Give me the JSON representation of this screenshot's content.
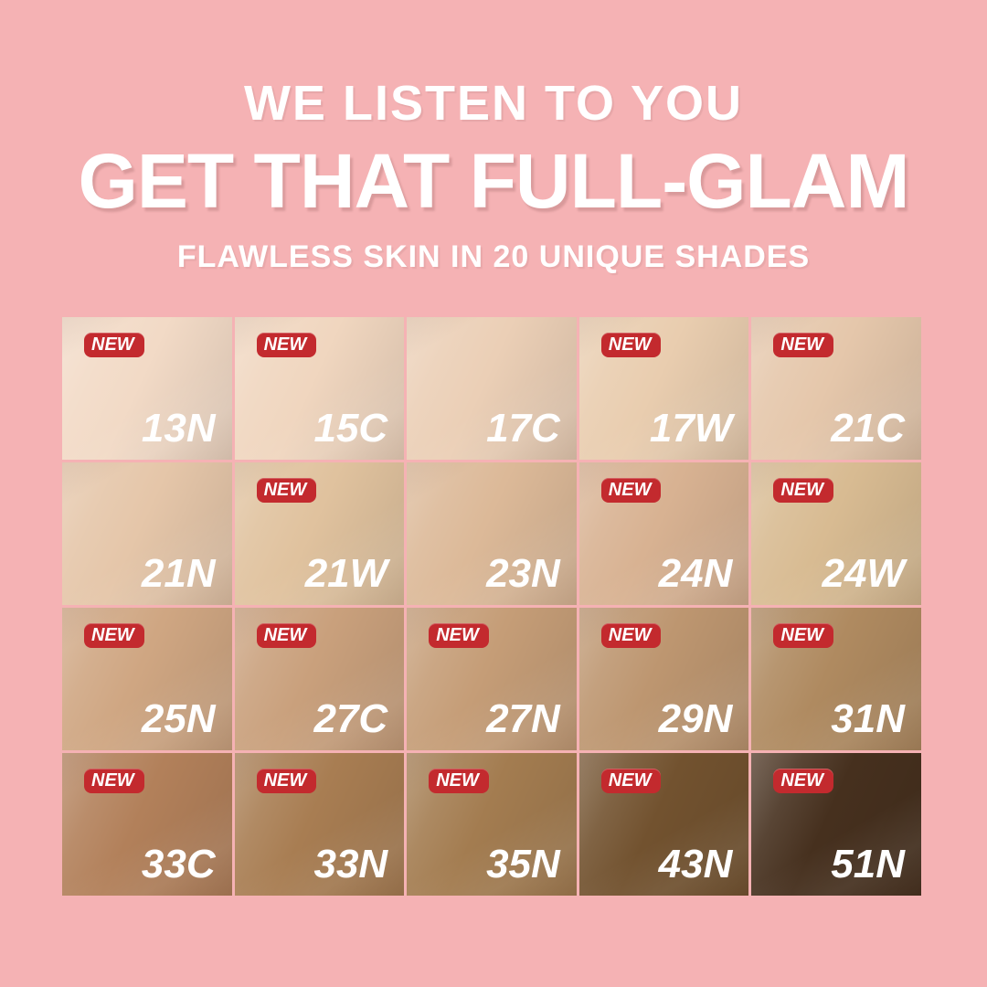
{
  "page": {
    "background": "#F5B2B4"
  },
  "header": {
    "line1": "WE LISTEN TO YOU",
    "line2": "GET THAT FULL-GLAM",
    "line3": "FLAWLESS SKIN IN 20 UNIQUE SHADES",
    "text_color": "#FFFFFF"
  },
  "badge": {
    "label": "NEW",
    "background": "#C32A2E",
    "text_color": "#FFFFFF"
  },
  "grid": {
    "rows": 4,
    "cols": 5,
    "shade_count": 20,
    "shades": [
      {
        "code": "13N",
        "color": "#F2DAC6",
        "new": true
      },
      {
        "code": "15C",
        "color": "#F0D6BF",
        "new": true
      },
      {
        "code": "17C",
        "color": "#EBCFB6",
        "new": false
      },
      {
        "code": "17W",
        "color": "#E9CDAF",
        "new": true
      },
      {
        "code": "21C",
        "color": "#E5C7AB",
        "new": true
      },
      {
        "code": "21N",
        "color": "#E5C6A9",
        "new": false
      },
      {
        "code": "21W",
        "color": "#E0C29E",
        "new": true
      },
      {
        "code": "23N",
        "color": "#DCB998",
        "new": false
      },
      {
        "code": "24N",
        "color": "#D8B292",
        "new": true
      },
      {
        "code": "24W",
        "color": "#D8BB92",
        "new": true
      },
      {
        "code": "25N",
        "color": "#CFA682",
        "new": true
      },
      {
        "code": "27C",
        "color": "#C9A07C",
        "new": true
      },
      {
        "code": "27N",
        "color": "#C59D77",
        "new": true
      },
      {
        "code": "29N",
        "color": "#BD9670",
        "new": true
      },
      {
        "code": "31N",
        "color": "#AF8A60",
        "new": true
      },
      {
        "code": "33C",
        "color": "#B2805A",
        "new": true
      },
      {
        "code": "33N",
        "color": "#A87D52",
        "new": true
      },
      {
        "code": "35N",
        "color": "#A37C50",
        "new": true
      },
      {
        "code": "43N",
        "color": "#72522F",
        "new": true
      },
      {
        "code": "51N",
        "color": "#46301E",
        "new": true
      }
    ]
  }
}
